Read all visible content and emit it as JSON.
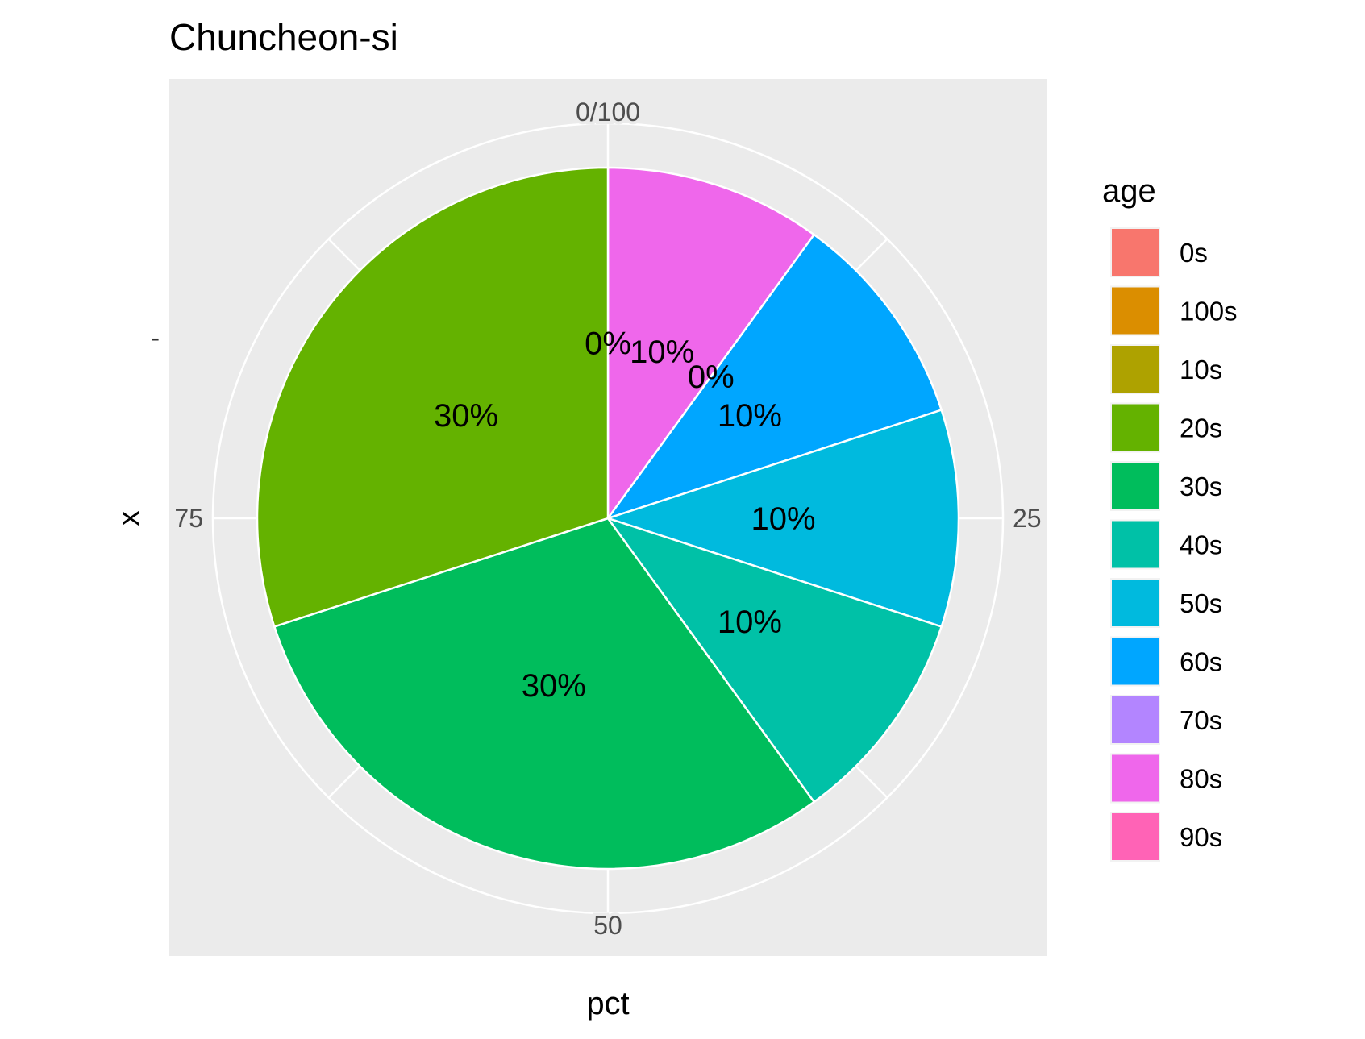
{
  "chart_data": {
    "type": "pie",
    "title": "Chuncheon-si",
    "xlabel": "pct",
    "ylabel": "x",
    "y_tick_label": "-",
    "angle_ticks": [
      "0/100",
      "25",
      "50",
      "75"
    ],
    "legend": {
      "title": "age",
      "position": "right",
      "entries": [
        {
          "label": "0s",
          "color": "#F8766D"
        },
        {
          "label": "100s",
          "color": "#DB8E00"
        },
        {
          "label": "10s",
          "color": "#AEA200"
        },
        {
          "label": "20s",
          "color": "#64B200"
        },
        {
          "label": "30s",
          "color": "#00BD5C"
        },
        {
          "label": "40s",
          "color": "#00C1A7"
        },
        {
          "label": "50s",
          "color": "#00BADE"
        },
        {
          "label": "60s",
          "color": "#00A6FF"
        },
        {
          "label": "70s",
          "color": "#B385FF"
        },
        {
          "label": "80s",
          "color": "#EF67EB"
        },
        {
          "label": "90s",
          "color": "#FF63B6"
        }
      ]
    },
    "slices": [
      {
        "category": "90s",
        "value": 0,
        "label": "0%",
        "color": "#FF63B6"
      },
      {
        "category": "80s",
        "value": 10,
        "label": "10%",
        "color": "#EF67EB"
      },
      {
        "category": "70s",
        "value": 0,
        "label": "0%",
        "color": "#B385FF"
      },
      {
        "category": "60s",
        "value": 10,
        "label": "10%",
        "color": "#00A6FF"
      },
      {
        "category": "50s",
        "value": 10,
        "label": "10%",
        "color": "#00BADE"
      },
      {
        "category": "40s",
        "value": 10,
        "label": "10%",
        "color": "#00C1A7"
      },
      {
        "category": "30s",
        "value": 30,
        "label": "30%",
        "color": "#00BD5C"
      },
      {
        "category": "20s",
        "value": 30,
        "label": "30%",
        "color": "#64B200"
      }
    ],
    "panel_background": "#EBEBEB",
    "grid": true
  }
}
